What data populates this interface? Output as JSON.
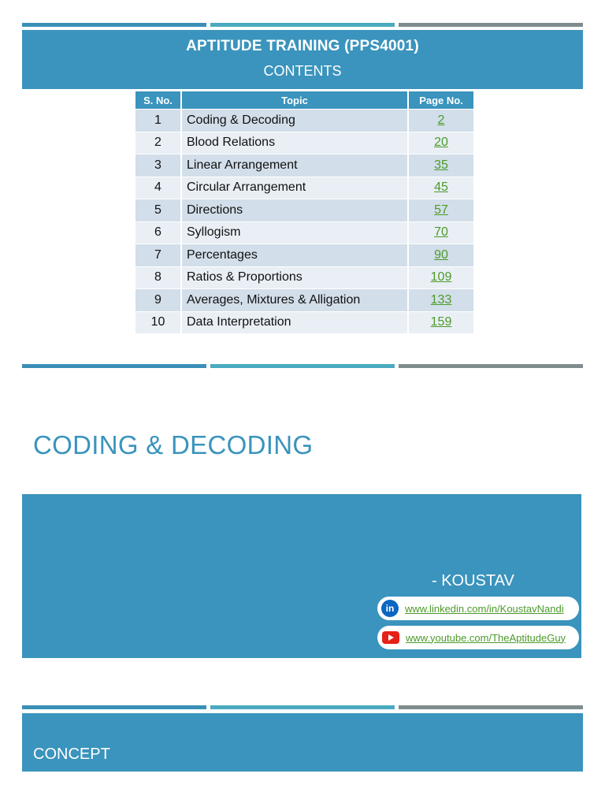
{
  "header": {
    "title": "APTITUDE TRAINING (PPS4001)",
    "subtitle": "CONTENTS"
  },
  "toc": {
    "columns": [
      "S. No.",
      "Topic",
      "Page No."
    ],
    "rows": [
      {
        "sno": "1",
        "topic": "Coding & Decoding",
        "page": "2"
      },
      {
        "sno": "2",
        "topic": "Blood Relations",
        "page": "20"
      },
      {
        "sno": "3",
        "topic": "Linear Arrangement",
        "page": "35"
      },
      {
        "sno": "4",
        "topic": "Circular Arrangement",
        "page": "45"
      },
      {
        "sno": "5",
        "topic": "Directions",
        "page": "57"
      },
      {
        "sno": "6",
        "topic": "Syllogism",
        "page": "70"
      },
      {
        "sno": "7",
        "topic": "Percentages",
        "page": "90"
      },
      {
        "sno": "8",
        "topic": "Ratios & Proportions",
        "page": "109"
      },
      {
        "sno": "9",
        "topic": "Averages, Mixtures & Alligation",
        "page": "133"
      },
      {
        "sno": "10",
        "topic": "Data Interpretation",
        "page": "159"
      }
    ]
  },
  "section": {
    "title": "CODING & DECODING"
  },
  "author": {
    "name": "- KOUSTAV",
    "linkedin_icon": "linkedin-icon",
    "linkedin": "www.linkedin.com/in/KoustavNandi",
    "youtube_icon": "youtube-icon",
    "youtube": "www.youtube.com/TheAptitudeGuy"
  },
  "concept": {
    "title": "CONCEPT"
  },
  "colors": {
    "primary": "#3a94bd",
    "link": "#4c9a2a"
  }
}
